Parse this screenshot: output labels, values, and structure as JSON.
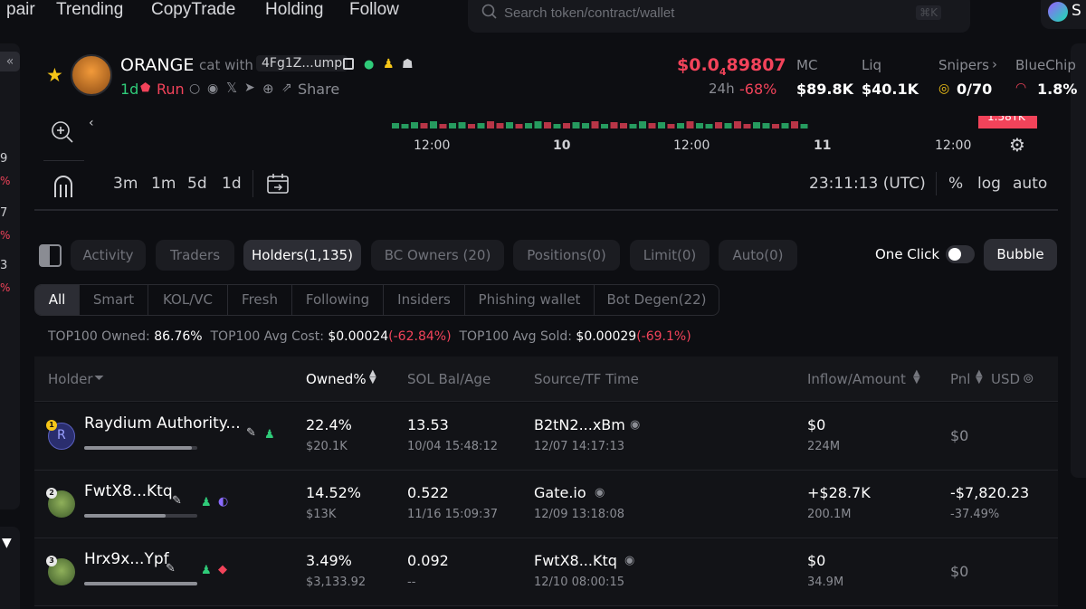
{
  "nav": {
    "items": [
      "pair",
      "Trending",
      "CopyTrade",
      "Holding",
      "Follow"
    ],
    "search_placeholder": "Search token/contract/wallet",
    "search_shortcut": "⌘K",
    "right_label": "S"
  },
  "leftrail": {
    "collapse_glyph": "«",
    "values": [
      "9",
      "7",
      "3"
    ],
    "pcts": [
      "%",
      "%",
      "%"
    ]
  },
  "token": {
    "symbol": "ORANGE",
    "name": "cat with",
    "contract": "4Fg1Z...ump",
    "age": "1d",
    "run_label": "Run",
    "share_label": "Share",
    "price_prefix": "$0.0",
    "price_sub": "4",
    "price_rest": "89807",
    "change_label": "24h",
    "change_value": "-68%",
    "stats": {
      "mc_label": "MC",
      "mc_value": "$89.8K",
      "liq_label": "Liq",
      "liq_value": "$40.1K",
      "snipers_label": "Snipers",
      "snipers_value": "0/70",
      "bluechip_label": "BlueChip",
      "bluechip_value": "1.8%"
    }
  },
  "chart": {
    "time_ticks": [
      "12:00",
      "10",
      "12:00",
      "11",
      "12:00"
    ],
    "price_tag": "1.58TK",
    "timeframes": [
      "3m",
      "1m",
      "5d",
      "1d"
    ],
    "clock": "23:11:13 (UTC)",
    "scale_options": [
      "%",
      "log",
      "auto"
    ]
  },
  "tabs": [
    {
      "label": "Activity",
      "active": false
    },
    {
      "label": "Traders",
      "active": false
    },
    {
      "label": "Holders(1,135)",
      "active": true
    },
    {
      "label": "BC Owners (20)",
      "active": false
    },
    {
      "label": "Positions(0)",
      "active": false
    },
    {
      "label": "Limit(0)",
      "active": false
    },
    {
      "label": "Auto(0)",
      "active": false
    }
  ],
  "one_click_label": "One Click",
  "bubble_label": "Bubble",
  "filters": [
    "All",
    "Smart",
    "KOL/VC",
    "Fresh",
    "Following",
    "Insiders",
    "Phishing wallet",
    "Bot Degen(22)"
  ],
  "summary": {
    "owned_label": "TOP100 Owned:",
    "owned_value": "86.76%",
    "avg_cost_label": "TOP100 Avg Cost:",
    "avg_cost_value": "$0.00024",
    "avg_cost_change": "(-62.84%)",
    "avg_sold_label": "TOP100 Avg Sold:",
    "avg_sold_value": "$0.00029",
    "avg_sold_change": "(-69.1%)"
  },
  "table": {
    "headers": {
      "holder": "Holder",
      "owned": "Owned%",
      "sol": "SOL Bal/Age",
      "source": "Source/TF Time",
      "inflow": "Inflow/Amount",
      "pnl": "Pnl",
      "usd": "USD"
    },
    "rows": [
      {
        "rank": "1",
        "name": "Raydium Authority...",
        "owned": "22.4%",
        "owned_usd": "$20.1K",
        "sol": "13.53",
        "age": "10/04 15:48:12",
        "source": "B2tN2...xBm",
        "tf_time": "12/07 14:17:13",
        "inflow": "$0",
        "amount": "224M",
        "pnl": "$0",
        "pnl_pct": "",
        "holding_fraction": 0.95,
        "avatar_color": "#2a2e6e"
      },
      {
        "rank": "2",
        "name": "FwtX8...Ktq",
        "owned": "14.52%",
        "owned_usd": "$13K",
        "sol": "0.522",
        "age": "11/16 15:09:37",
        "source": "Gate.io",
        "tf_time": "12/09 13:18:08",
        "inflow": "+$28.7K",
        "amount": "200.1M",
        "pnl": "-$7,820.23",
        "pnl_pct": "-37.49%",
        "holding_fraction": 0.72,
        "avatar_color": "#5b6b3a"
      },
      {
        "rank": "3",
        "name": "Hrx9x...Ypf",
        "owned": "3.49%",
        "owned_usd": "$3,133.92",
        "sol": "0.092",
        "age": "--",
        "source": "FwtX8...Ktq",
        "tf_time": "12/10 08:00:15",
        "inflow": "$0",
        "amount": "34.9M",
        "pnl": "$0",
        "pnl_pct": "",
        "holding_fraction": 1.0,
        "avatar_color": "#4b5a3c"
      }
    ]
  },
  "colors": {
    "up": "#2fcb79",
    "down": "#f2435a",
    "bg": "#0d0e12"
  }
}
